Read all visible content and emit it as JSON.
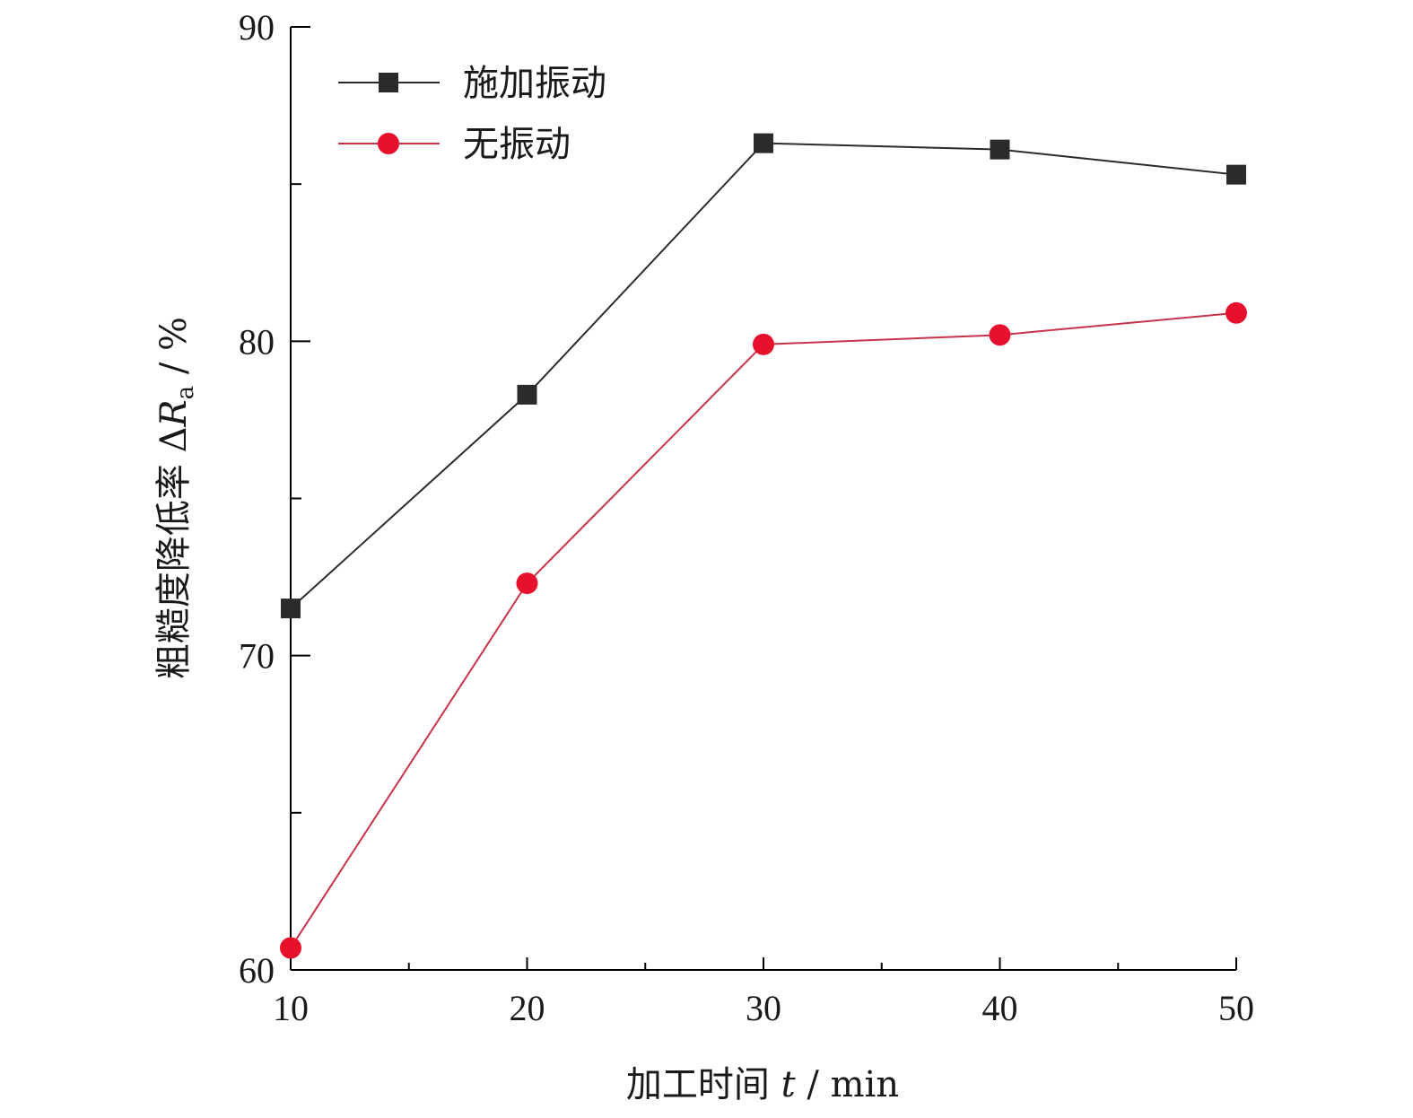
{
  "chart_data": {
    "type": "line",
    "x": [
      10,
      20,
      30,
      40,
      50
    ],
    "xlabel": {
      "text": "加工时间",
      "var": "t",
      "unit": " / min"
    },
    "ylabel": {
      "text": "粗糙度降低率 ",
      "delta": "Δ",
      "var": "R",
      "sub": "a",
      "unit": " / %"
    },
    "xlim": [
      10,
      50
    ],
    "ylim": [
      60,
      90
    ],
    "x_ticks": [
      10,
      20,
      30,
      40,
      50
    ],
    "y_ticks": [
      60,
      70,
      80,
      90
    ],
    "grid": false,
    "legend_position": "top-left",
    "series": [
      {
        "name": "施加振动",
        "marker": "square",
        "color": "#2b2b2b",
        "values": [
          71.5,
          78.3,
          86.3,
          86.1,
          85.3
        ]
      },
      {
        "name": "无振动",
        "marker": "circle",
        "color": "#e8112d",
        "line_color": "#c8324a",
        "values": [
          60.7,
          72.3,
          79.9,
          80.2,
          80.9
        ]
      }
    ]
  }
}
